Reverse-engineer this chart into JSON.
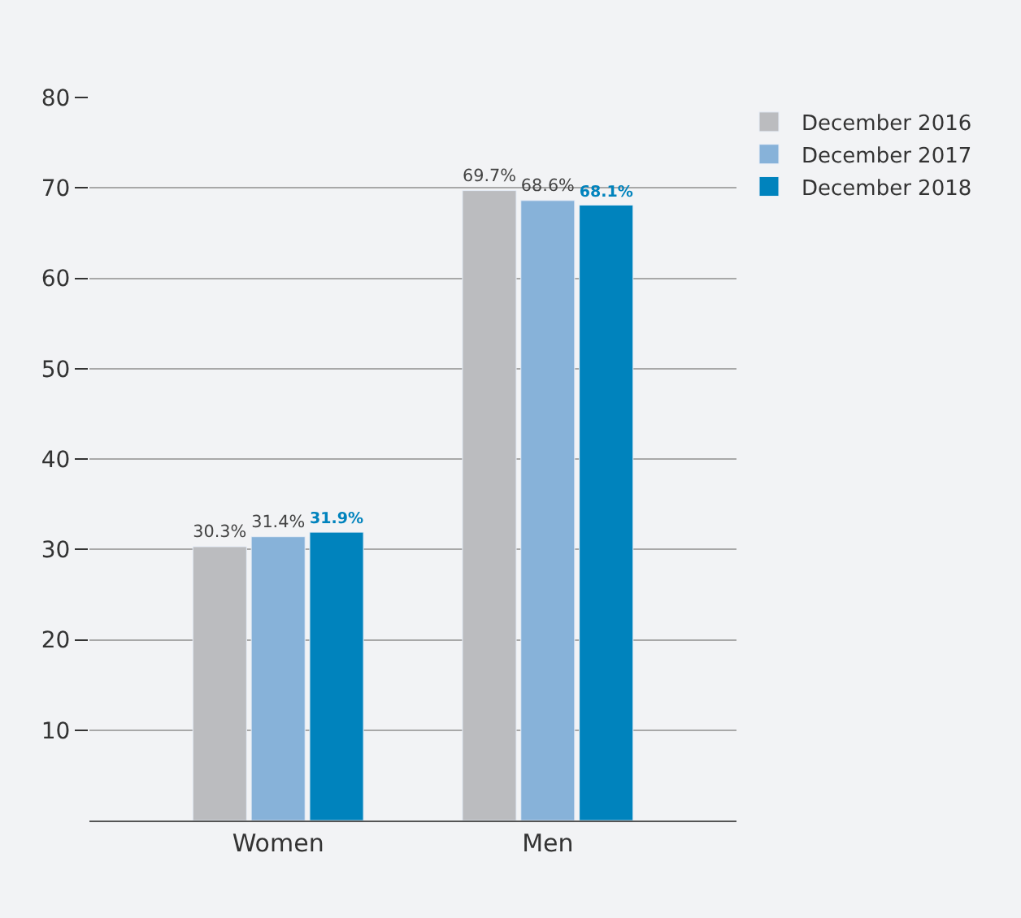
{
  "chart_data": {
    "type": "bar",
    "categories": [
      "Women",
      "Men"
    ],
    "series": [
      {
        "name": "December 2016",
        "color": "#bbbcbf",
        "values": [
          30.3,
          69.7
        ],
        "value_labels": [
          "30.3%",
          "69.7%"
        ]
      },
      {
        "name": "December 2017",
        "color": "#87b2d9",
        "values": [
          31.4,
          68.6
        ],
        "value_labels": [
          "31.4%",
          "68.6%"
        ]
      },
      {
        "name": "December 2018",
        "color": "#0083bd",
        "values": [
          31.9,
          68.1
        ],
        "value_labels": [
          "31.9%",
          "68.1%"
        ]
      }
    ],
    "ylim": [
      0,
      80
    ],
    "yticks": [
      10,
      20,
      30,
      40,
      50,
      60,
      70,
      80
    ],
    "grid": "y",
    "legend": "top right"
  }
}
